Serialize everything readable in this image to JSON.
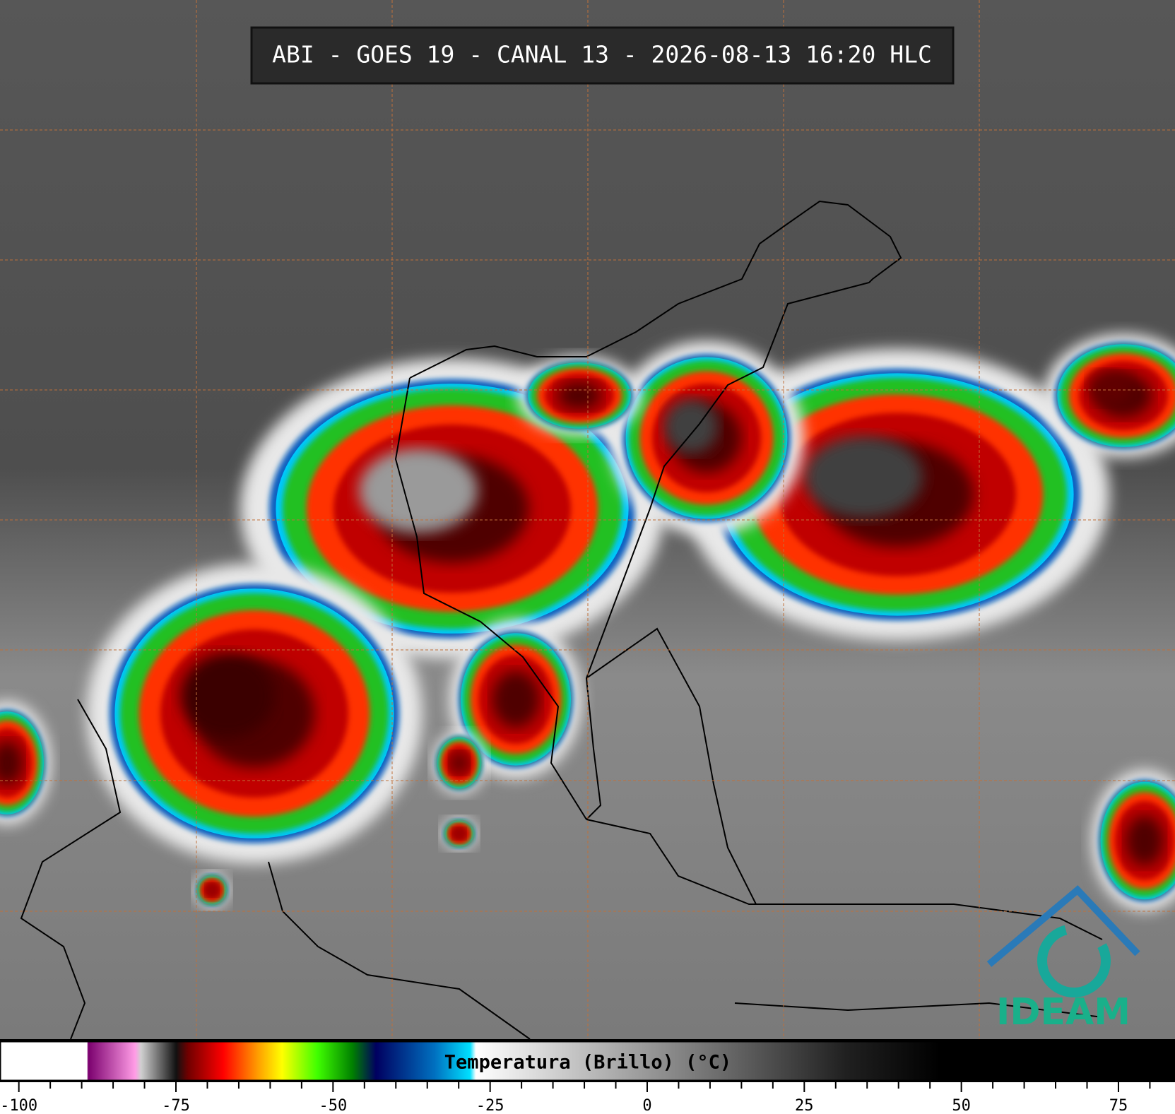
{
  "header": {
    "title": "ABI - GOES 19 - CANAL 13 - 2026-08-13 16:20 HLC"
  },
  "colorbar": {
    "label": "Temperatura (Brillo) (°C)",
    "lim": [
      -103,
      84
    ],
    "ticks": [
      -100,
      -75,
      -50,
      -25,
      0,
      25,
      50,
      75
    ],
    "minor_ticks": [
      -95,
      -90,
      -85,
      -80,
      -70,
      -65,
      -60,
      -55,
      -45,
      -40,
      -35,
      -30,
      -20,
      -15,
      -10,
      -5,
      5,
      10,
      15,
      20,
      30,
      35,
      40,
      45,
      55,
      60,
      65,
      70,
      80
    ]
  },
  "logo": {
    "text": "IDEAM"
  }
}
